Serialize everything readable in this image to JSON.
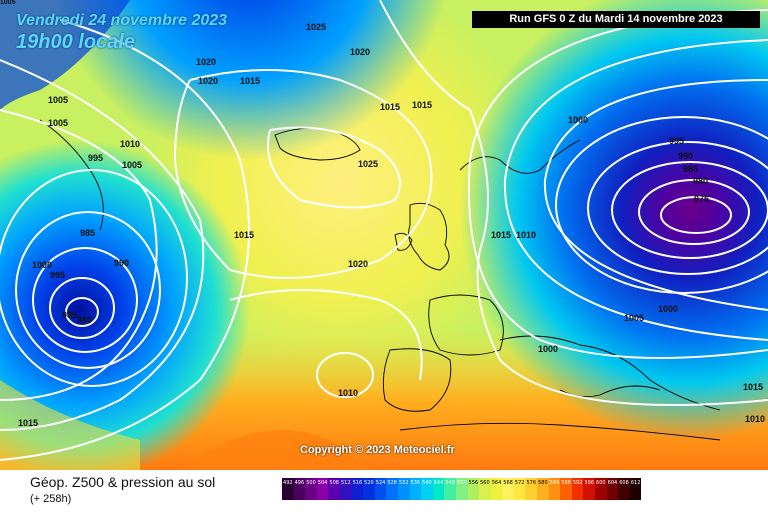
{
  "header": {
    "date": "Vendredi 24 novembre 2023",
    "time": "19h00 locale",
    "run": "Run GFS 0 Z du Mardi 14 novembre 2023",
    "corner_label": "1005"
  },
  "footer": {
    "title": "Géop. Z500 & pression au sol",
    "lead": "(+ 258h)",
    "copyright": "Copyright © 2023 Meteociel.fr"
  },
  "legend": {
    "values": [
      "492",
      "496",
      "500",
      "504",
      "508",
      "512",
      "516",
      "520",
      "524",
      "528",
      "532",
      "536",
      "540",
      "544",
      "548",
      "552",
      "556",
      "560",
      "564",
      "568",
      "572",
      "576",
      "580",
      "584",
      "588",
      "592",
      "596",
      "600",
      "604",
      "608",
      "612"
    ],
    "colors": [
      "#2a0033",
      "#4b0060",
      "#6b0087",
      "#8a00a8",
      "#5a00b0",
      "#3010c0",
      "#1020d0",
      "#0030e0",
      "#0050f0",
      "#0070ff",
      "#0090ff",
      "#00b0ff",
      "#00d0f0",
      "#00e8c8",
      "#40f0a0",
      "#80f080",
      "#b0f060",
      "#d8f050",
      "#f0f040",
      "#fff060",
      "#ffe840",
      "#ffd030",
      "#ffb020",
      "#ff9010",
      "#ff6000",
      "#f03000",
      "#d01000",
      "#a00000",
      "#700000",
      "#400000",
      "#200000"
    ]
  },
  "pressure_labels": [
    {
      "text": "1025"
    },
    {
      "text": "1020"
    },
    {
      "text": "1020"
    },
    {
      "text": "1020"
    },
    {
      "text": "1015"
    },
    {
      "text": "1015"
    },
    {
      "text": "1015"
    },
    {
      "text": "1005"
    },
    {
      "text": "1005"
    },
    {
      "text": "1010"
    },
    {
      "text": "995"
    },
    {
      "text": "1005"
    },
    {
      "text": "1025"
    },
    {
      "text": "1015"
    },
    {
      "text": "985"
    },
    {
      "text": "1000"
    },
    {
      "text": "995"
    },
    {
      "text": "990"
    },
    {
      "text": "985"
    },
    {
      "text": "980"
    },
    {
      "text": "1020"
    },
    {
      "text": "1015"
    },
    {
      "text": "1010"
    },
    {
      "text": "1010"
    },
    {
      "text": "1015"
    },
    {
      "text": "1000"
    },
    {
      "text": "995"
    },
    {
      "text": "990"
    },
    {
      "text": "985"
    },
    {
      "text": "980"
    },
    {
      "text": "975"
    },
    {
      "text": "1000"
    },
    {
      "text": "1005"
    },
    {
      "text": "1000"
    },
    {
      "text": "1015"
    },
    {
      "text": "1010"
    }
  ]
}
